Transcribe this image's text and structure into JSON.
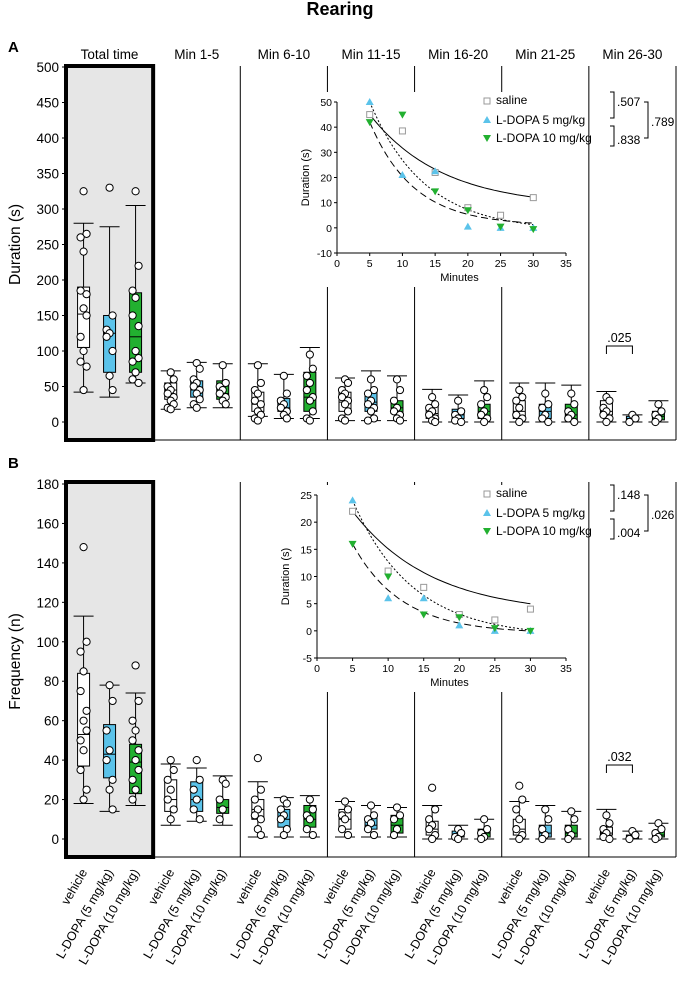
{
  "title": "Rearing",
  "period_labels": [
    "Total time",
    "Min 1-5",
    "Min 6-10",
    "Min 11-15",
    "Min 16-20",
    "Min 21-25",
    "Min 26-30"
  ],
  "group_labels": [
    "vehicle",
    "L-DOPA (5 mg/kg)",
    "L-DOPA (10 mg/kg)"
  ],
  "colors": {
    "vehicle": "#ffffff",
    "ldopa5": "#5bc3ea",
    "ldopa10": "#22b030",
    "shade": "#e6e6e6"
  },
  "chart_data": [
    {
      "type": "box",
      "panel": "A",
      "ylabel": "Duration (s)",
      "ylim": [
        0,
        500
      ],
      "yticks": [
        0,
        50,
        100,
        150,
        200,
        250,
        300,
        350,
        400,
        450,
        500
      ],
      "boxes": [
        [
          [
            42,
            105,
            152,
            190,
            280
          ],
          [
            35,
            70,
            125,
            150,
            275
          ],
          [
            55,
            70,
            120,
            182,
            305
          ]
        ],
        [
          [
            18,
            32,
            45,
            55,
            72
          ],
          [
            20,
            35,
            45,
            58,
            84
          ],
          [
            20,
            32,
            40,
            58,
            82
          ]
        ],
        [
          [
            8,
            15,
            25,
            42,
            82
          ],
          [
            5,
            15,
            20,
            33,
            67
          ],
          [
            5,
            15,
            35,
            70,
            105
          ]
        ],
        [
          [
            2,
            15,
            28,
            42,
            62
          ],
          [
            2,
            15,
            28,
            42,
            72
          ],
          [
            2,
            12,
            20,
            30,
            65
          ]
        ],
        [
          [
            0,
            5,
            12,
            22,
            46
          ],
          [
            0,
            5,
            10,
            18,
            38
          ],
          [
            0,
            5,
            15,
            25,
            58
          ]
        ],
        [
          [
            0,
            5,
            15,
            30,
            55
          ],
          [
            0,
            5,
            15,
            25,
            55
          ],
          [
            0,
            2,
            10,
            25,
            52
          ]
        ],
        [
          [
            0,
            10,
            15,
            30,
            43
          ],
          [
            0,
            3,
            5,
            8,
            10
          ],
          [
            0,
            3,
            8,
            15,
            30
          ]
        ]
      ],
      "points": [
        [
          [
            325,
            265,
            260,
            240,
            185,
            180,
            160,
            150,
            120,
            100,
            85,
            78,
            45
          ],
          [
            330,
            150,
            130,
            125,
            120,
            100,
            65,
            45
          ],
          [
            325,
            220,
            185,
            175,
            150,
            135,
            100,
            90,
            85,
            70,
            60,
            55
          ]
        ],
        [
          [
            70,
            60,
            50,
            45,
            40,
            35,
            30,
            25,
            20,
            18
          ],
          [
            83,
            75,
            60,
            55,
            50,
            45,
            40,
            32,
            25,
            20
          ],
          [
            80,
            55,
            50,
            45,
            40,
            35,
            30,
            25
          ]
        ],
        [
          [
            80,
            55,
            45,
            40,
            30,
            25,
            15,
            10,
            5,
            2
          ],
          [
            65,
            40,
            30,
            25,
            20,
            15,
            10,
            5
          ],
          [
            95,
            75,
            65,
            55,
            45,
            35,
            30,
            15,
            5,
            2
          ]
        ],
        [
          [
            60,
            55,
            45,
            40,
            35,
            30,
            25,
            15,
            5,
            2
          ],
          [
            60,
            45,
            40,
            30,
            25,
            20,
            15,
            5,
            2
          ],
          [
            60,
            45,
            30,
            20,
            15,
            10,
            5,
            2
          ]
        ],
        [
          [
            35,
            25,
            20,
            15,
            10,
            5,
            2,
            0
          ],
          [
            30,
            15,
            10,
            5,
            2,
            0
          ],
          [
            45,
            35,
            25,
            15,
            10,
            5,
            0
          ]
        ],
        [
          [
            45,
            35,
            30,
            20,
            10,
            5,
            0
          ],
          [
            40,
            25,
            20,
            10,
            5,
            0
          ],
          [
            40,
            25,
            15,
            10,
            5,
            0
          ]
        ],
        [
          [
            35,
            30,
            20,
            15,
            10,
            5,
            0
          ],
          [
            10,
            5,
            0
          ],
          [
            25,
            15,
            10,
            5,
            0
          ]
        ]
      ],
      "significance": {
        "label": ".025",
        "between": [
          "Min 26-30 vehicle",
          "Min 26-30 L-DOPA (5 mg/kg)"
        ]
      },
      "inset": {
        "type": "line",
        "xlabel": "Minutes",
        "ylabel": "Duration (s)",
        "xlim": [
          0,
          35
        ],
        "ylim": [
          -10,
          50
        ],
        "xticks": [
          0,
          5,
          10,
          15,
          20,
          25,
          30,
          35
        ],
        "yticks": [
          -10,
          0,
          10,
          20,
          30,
          40,
          50
        ],
        "x": [
          5,
          10,
          15,
          20,
          25,
          30
        ],
        "series": [
          {
            "name": "saline",
            "values": [
              45,
              38.5,
              22,
              8,
              5,
              12
            ]
          },
          {
            "name": "L-DOPA 5 mg/kg",
            "values": [
              50,
              21,
              22.5,
              0.5,
              0,
              0
            ]
          },
          {
            "name": "L-DOPA 10 mg/kg",
            "values": [
              42,
              45,
              14.5,
              7,
              0.5,
              -0.5
            ]
          }
        ],
        "stats": [
          ".507",
          ".838",
          ".789"
        ]
      }
    },
    {
      "type": "box",
      "panel": "B",
      "ylabel": "Frequency (n)",
      "ylim": [
        0,
        180
      ],
      "yticks": [
        0,
        20,
        40,
        60,
        80,
        100,
        120,
        140,
        160,
        180
      ],
      "boxes": [
        [
          [
            18,
            37,
            53,
            84,
            113
          ],
          [
            14,
            31,
            43,
            58,
            78
          ],
          [
            17,
            23,
            39,
            48,
            74
          ]
        ],
        [
          [
            7,
            14,
            20,
            30,
            38
          ],
          [
            9,
            14,
            20,
            29,
            36
          ],
          [
            7,
            13,
            16,
            20,
            32
          ]
        ],
        [
          [
            1,
            10,
            15,
            20,
            29
          ],
          [
            1,
            6,
            10,
            15,
            21
          ],
          [
            1,
            6,
            10,
            17,
            22
          ]
        ],
        [
          [
            1,
            5,
            10,
            15,
            19
          ],
          [
            1,
            5,
            7,
            11,
            17
          ],
          [
            1,
            3,
            7,
            12,
            16
          ]
        ],
        [
          [
            0,
            2,
            5,
            9,
            17
          ],
          [
            0,
            1,
            2,
            4,
            7
          ],
          [
            0,
            1,
            3,
            5,
            10
          ]
        ],
        [
          [
            0,
            2,
            5,
            10,
            19
          ],
          [
            0,
            1,
            3,
            7,
            17
          ],
          [
            0,
            1,
            3,
            7,
            14
          ]
        ],
        [
          [
            0,
            2,
            3,
            6,
            15
          ],
          [
            0,
            0,
            1,
            2,
            4
          ],
          [
            0,
            1,
            2,
            4,
            8
          ]
        ]
      ],
      "points": [
        [
          [
            148,
            100,
            95,
            85,
            75,
            65,
            60,
            55,
            50,
            45,
            35,
            25,
            20
          ],
          [
            78,
            70,
            55,
            45,
            40,
            30,
            25,
            15
          ],
          [
            88,
            70,
            60,
            55,
            50,
            45,
            40,
            35,
            30,
            25,
            20
          ]
        ],
        [
          [
            40,
            35,
            30,
            25,
            20,
            15,
            10
          ],
          [
            40,
            30,
            25,
            20,
            15,
            10
          ],
          [
            30,
            28,
            20,
            15,
            10
          ]
        ],
        [
          [
            41,
            25,
            20,
            15,
            12,
            10,
            5,
            2
          ],
          [
            20,
            18,
            15,
            12,
            10,
            5,
            2
          ],
          [
            20,
            15,
            12,
            10,
            5,
            2
          ]
        ],
        [
          [
            19,
            15,
            12,
            10,
            5,
            2
          ],
          [
            17,
            12,
            10,
            8,
            5,
            2
          ],
          [
            16,
            12,
            10,
            5,
            2
          ]
        ],
        [
          [
            26,
            15,
            10,
            7,
            5,
            2,
            0
          ],
          [
            5,
            3,
            1,
            0
          ],
          [
            10,
            5,
            3,
            1,
            0
          ]
        ],
        [
          [
            27,
            20,
            15,
            10,
            5,
            2,
            0
          ],
          [
            15,
            10,
            5,
            2,
            0
          ],
          [
            14,
            10,
            5,
            2,
            0
          ]
        ],
        [
          [
            12,
            8,
            5,
            3,
            1,
            0
          ],
          [
            4,
            2,
            0
          ],
          [
            8,
            5,
            3,
            1,
            0
          ]
        ]
      ],
      "significance": {
        "label": ".032",
        "between": [
          "Min 26-30 vehicle",
          "Min 26-30 L-DOPA (5 mg/kg)"
        ]
      },
      "inset": {
        "type": "line",
        "xlabel": "Minutes",
        "ylabel": "Duration (s)",
        "xlim": [
          0,
          35
        ],
        "ylim": [
          -5,
          25
        ],
        "xticks": [
          0,
          5,
          10,
          15,
          20,
          25,
          30,
          35
        ],
        "yticks": [
          -5,
          0,
          5,
          10,
          15,
          20,
          25
        ],
        "x": [
          5,
          10,
          15,
          20,
          25,
          30
        ],
        "series": [
          {
            "name": "saline",
            "values": [
              22,
              11,
              8,
              3,
              2,
              4
            ]
          },
          {
            "name": "L-DOPA 5 mg/kg",
            "values": [
              24,
              6,
              6,
              1,
              0,
              0
            ]
          },
          {
            "name": "L-DOPA 10 mg/kg",
            "values": [
              16,
              10,
              3,
              2.5,
              0.5,
              0
            ]
          }
        ],
        "stats": [
          ".148",
          ".004",
          ".026"
        ]
      }
    }
  ]
}
